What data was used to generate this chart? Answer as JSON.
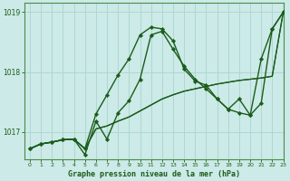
{
  "title": "Graphe pression niveau de la mer (hPa)",
  "background_color": "#cceae7",
  "grid_color": "#aad4d0",
  "line_color": "#1a5c1a",
  "spine_color": "#4a8c4a",
  "xlim": [
    -0.5,
    23
  ],
  "ylim": [
    1016.55,
    1019.15
  ],
  "yticks": [
    1017,
    1018,
    1019
  ],
  "xticks": [
    0,
    1,
    2,
    3,
    4,
    5,
    6,
    7,
    8,
    9,
    10,
    11,
    12,
    13,
    14,
    15,
    16,
    17,
    18,
    19,
    20,
    21,
    22,
    23
  ],
  "series": [
    {
      "x": [
        0,
        1,
        2,
        3,
        4,
        5,
        6,
        7,
        8,
        9,
        10,
        11,
        12,
        13,
        14,
        15,
        16,
        17,
        18,
        19,
        20,
        21,
        22,
        23
      ],
      "y": [
        1016.72,
        1016.8,
        1016.83,
        1016.87,
        1016.88,
        1016.72,
        1017.05,
        1017.1,
        1017.18,
        1017.25,
        1017.35,
        1017.45,
        1017.55,
        1017.62,
        1017.68,
        1017.72,
        1017.76,
        1017.8,
        1017.83,
        1017.86,
        1017.88,
        1017.9,
        1017.93,
        1019.0
      ],
      "marker": false,
      "lw": 0.9
    },
    {
      "x": [
        0,
        1,
        2,
        3,
        4,
        5,
        6,
        7,
        8,
        9,
        10,
        11,
        12,
        13,
        14,
        15,
        16,
        17,
        18,
        19,
        20,
        21,
        22,
        23
      ],
      "y": [
        1016.72,
        1016.8,
        1016.83,
        1016.87,
        1016.88,
        1016.72,
        1017.05,
        1017.1,
        1017.18,
        1017.25,
        1017.35,
        1017.45,
        1017.55,
        1017.62,
        1017.68,
        1017.72,
        1017.76,
        1017.8,
        1017.83,
        1017.86,
        1017.88,
        1017.9,
        1017.93,
        1019.0
      ],
      "marker": false,
      "lw": 0.9
    },
    {
      "x": [
        0,
        1,
        2,
        3,
        4,
        5,
        6,
        7,
        8,
        9,
        10,
        11,
        12,
        13,
        14,
        15,
        16,
        17,
        18,
        19,
        20,
        21,
        22,
        23
      ],
      "y": [
        1016.72,
        1016.8,
        1016.83,
        1016.87,
        1016.88,
        1016.72,
        1017.3,
        1017.62,
        1017.95,
        1018.22,
        1018.62,
        1018.75,
        1018.72,
        1018.52,
        1018.05,
        1017.85,
        1017.78,
        1017.55,
        1017.38,
        1017.32,
        1017.28,
        1018.22,
        1018.72,
        1019.0
      ],
      "marker": true,
      "lw": 1.0
    },
    {
      "x": [
        0,
        1,
        2,
        3,
        4,
        5,
        6,
        7,
        8,
        9,
        10,
        11,
        12,
        13,
        14,
        15,
        16,
        17,
        18,
        19,
        20,
        21,
        22,
        23
      ],
      "y": [
        1016.72,
        1016.8,
        1016.83,
        1016.87,
        1016.88,
        1016.62,
        1017.18,
        1016.88,
        1017.32,
        1017.52,
        1017.88,
        1018.62,
        1018.68,
        1018.38,
        1018.1,
        1017.88,
        1017.72,
        1017.55,
        1017.38,
        1017.55,
        1017.28,
        1017.48,
        1018.72,
        1019.0
      ],
      "marker": true,
      "lw": 1.0
    }
  ]
}
